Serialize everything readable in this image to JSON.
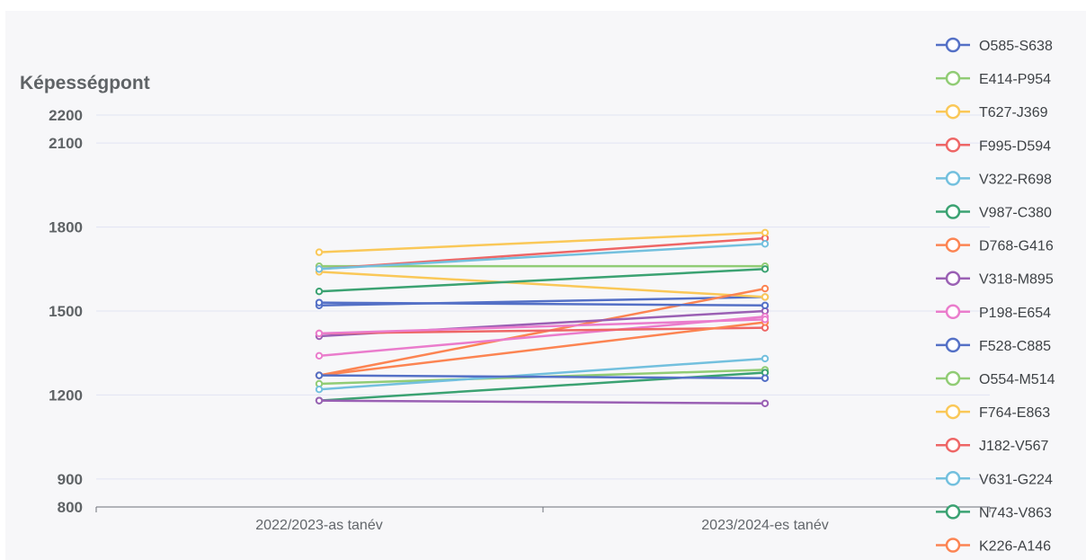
{
  "chart_data": {
    "type": "line",
    "ylabel": "Képességpont",
    "xlabel": "",
    "categories": [
      "2022/2023-as tanév",
      "2023/2024-es tanév"
    ],
    "yticks": [
      800,
      900,
      1200,
      1500,
      1800,
      2100,
      2200
    ],
    "ylim": [
      800,
      2200
    ],
    "grid": true,
    "legend_position": "right",
    "series": [
      {
        "name": "O585-S638",
        "color": "#5470c6",
        "values": [
          1520,
          1550
        ]
      },
      {
        "name": "E414-P954",
        "color": "#91cc75",
        "values": [
          1660,
          1660
        ]
      },
      {
        "name": "T627-J369",
        "color": "#fac858",
        "values": [
          1640,
          1550
        ]
      },
      {
        "name": "F995-D594",
        "color": "#ee6666",
        "values": [
          1650,
          1760
        ]
      },
      {
        "name": "V322-R698",
        "color": "#73c0de",
        "values": [
          1650,
          1740
        ]
      },
      {
        "name": "V987-C380",
        "color": "#3ba272",
        "values": [
          1570,
          1650
        ]
      },
      {
        "name": "D768-G416",
        "color": "#fc8452",
        "values": [
          1270,
          1580
        ]
      },
      {
        "name": "V318-M895",
        "color": "#9a60b4",
        "values": [
          1410,
          1500
        ]
      },
      {
        "name": "P198-E654",
        "color": "#ea7ccc",
        "values": [
          1340,
          1480
        ]
      },
      {
        "name": "F528-C885",
        "color": "#5470c6",
        "values": [
          1530,
          1520
        ]
      },
      {
        "name": "O554-M514",
        "color": "#91cc75",
        "values": [
          1240,
          1290
        ]
      },
      {
        "name": "F764-E863",
        "color": "#fac858",
        "values": [
          1710,
          1780
        ]
      },
      {
        "name": "J182-V567",
        "color": "#ee6666",
        "values": [
          1420,
          1440
        ]
      },
      {
        "name": "V631-G224",
        "color": "#73c0de",
        "values": [
          1220,
          1330
        ]
      },
      {
        "name": "N743-V863",
        "color": "#3ba272",
        "values": [
          1180,
          1280
        ]
      },
      {
        "name": "K226-A146",
        "color": "#fc8452",
        "values": [
          1270,
          1460
        ]
      },
      {
        "name": "",
        "color": "#9a60b4",
        "values": [
          1180,
          1170
        ]
      },
      {
        "name": "",
        "color": "#ea7ccc",
        "values": [
          1420,
          1470
        ]
      },
      {
        "name": "",
        "color": "#5470c6",
        "values": [
          1270,
          1260
        ]
      }
    ]
  }
}
